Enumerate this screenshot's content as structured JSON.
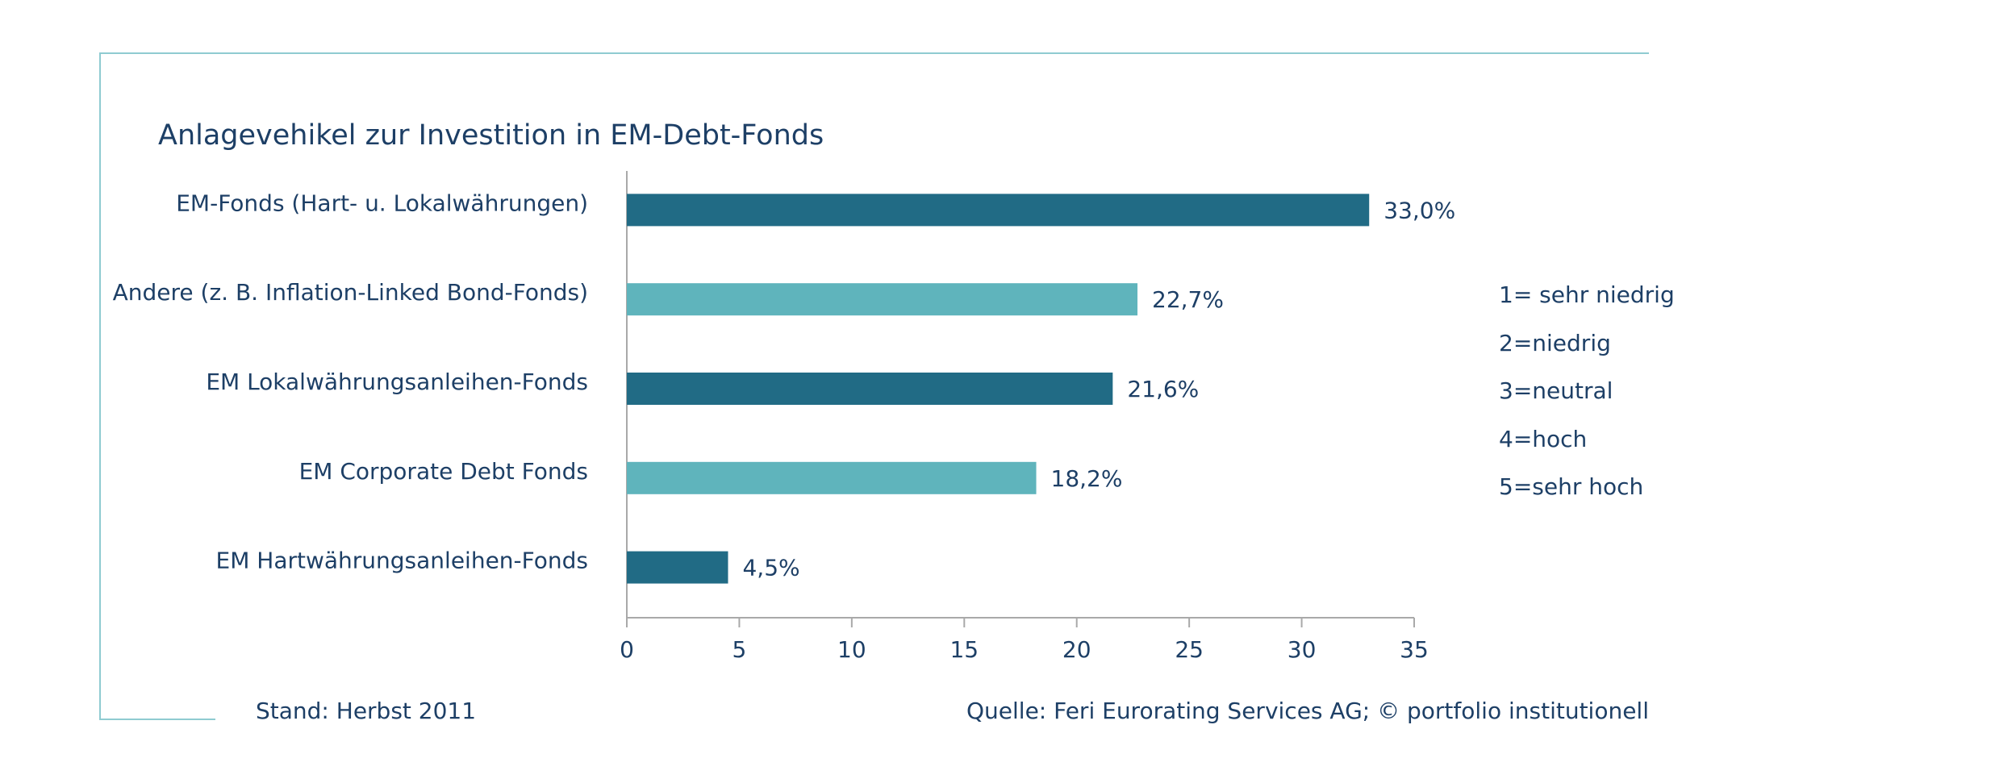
{
  "chart_data": {
    "type": "bar",
    "orientation": "horizontal",
    "title": "Anlagevehikel zur Investition in EM-Debt-Fonds",
    "categories": [
      "EM-Fonds (Hart- u. Lokalwährungen)",
      "Andere (z. B. Inflation-Linked Bond-Fonds)",
      "EM Lokalwährungsanleihen-Fonds",
      "EM Corporate Debt Fonds",
      "EM Hartwährungsanleihen-Fonds"
    ],
    "values": [
      33.0,
      22.7,
      21.6,
      18.2,
      4.5
    ],
    "value_labels": [
      "33,0%",
      "22,7%",
      "21,6%",
      "18,2%",
      "4,5%"
    ],
    "bar_colors": [
      "#216b85",
      "#5fb4bc",
      "#216b85",
      "#5fb4bc",
      "#216b85"
    ],
    "xlim": [
      0,
      35
    ],
    "xticks": [
      0,
      5,
      10,
      15,
      20,
      25,
      30,
      35
    ],
    "xtick_labels": [
      "0",
      "5",
      "10",
      "15",
      "20",
      "25",
      "30",
      "35"
    ],
    "grid": false
  },
  "legend_lines": [
    "1= sehr niedrig",
    "2=niedrig",
    "3=neutral",
    "4=hoch",
    "5=sehr hoch"
  ],
  "footer": {
    "stand": "Stand: Herbst 2011",
    "source": "Quelle: Feri Eurorating Services AG; © portfolio institutionell"
  },
  "colors": {
    "text": "#1d3f66",
    "frame": "#8fcbd1",
    "axis": "#a9a9a9"
  }
}
